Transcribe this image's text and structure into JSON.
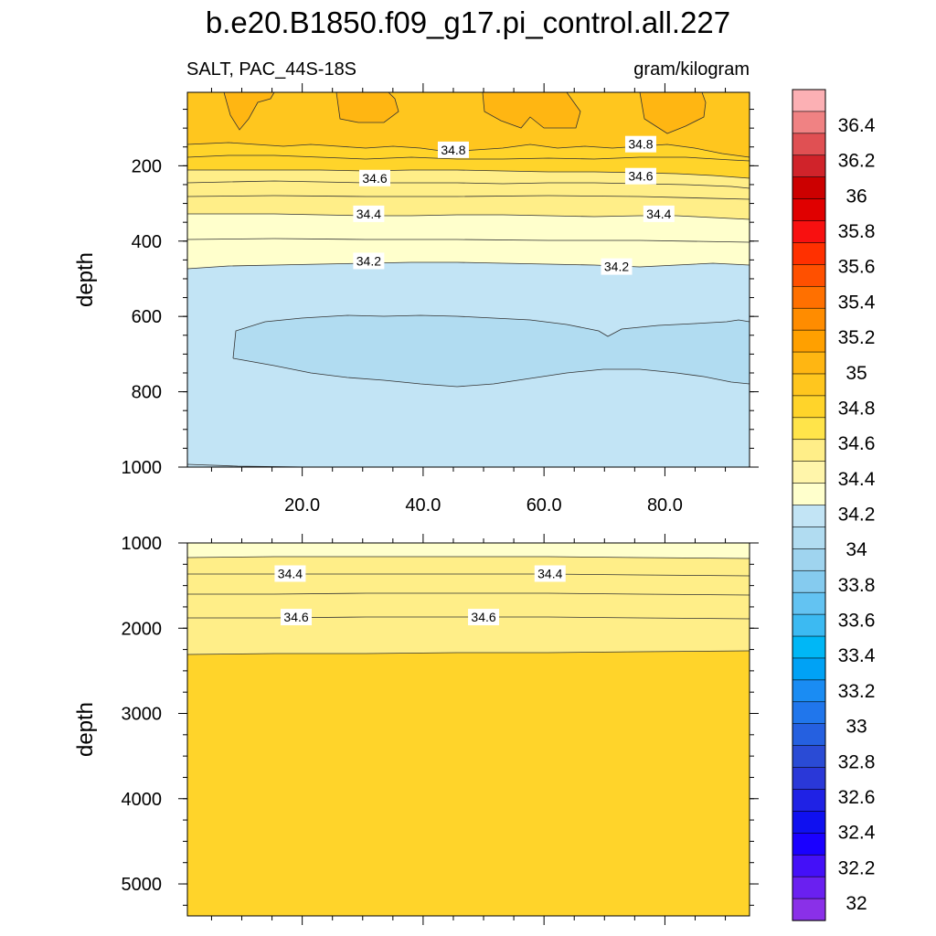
{
  "title": "b.e20.B1850.f09_g17.pi_control.all.227",
  "subtitle_left": "SALT, PAC_44S-18S",
  "subtitle_right": "gram/kilogram",
  "colors": {
    "c34_0": "#b1dcf1",
    "c34_2": "#c2e4f5",
    "c34_4": "#ffffcc",
    "c34_6": "#ffee88",
    "c34_8": "#ffd42a",
    "c35_0": "#ffb612"
  },
  "chart_data": [
    {
      "type": "contour",
      "xlabel": "",
      "ylabel": "depth",
      "xlim": [
        1,
        94
      ],
      "ylim": [
        1000,
        5
      ],
      "x_ticks": [
        "20.0",
        "40.0",
        "60.0",
        "80.0"
      ],
      "x_tick_values": [
        20,
        40,
        60,
        80
      ],
      "y_ticks": [
        "200",
        "400",
        "600",
        "800",
        "1000"
      ],
      "y_tick_values": [
        200,
        400,
        600,
        800,
        1000
      ],
      "contour_labels": [
        {
          "text": "34.8",
          "x": 45,
          "y": 160
        },
        {
          "text": "34.8",
          "x": 76,
          "y": 145
        },
        {
          "text": "34.6",
          "x": 32,
          "y": 235
        },
        {
          "text": "34.6",
          "x": 76,
          "y": 230
        },
        {
          "text": "34.4",
          "x": 31,
          "y": 330
        },
        {
          "text": "34.4",
          "x": 79,
          "y": 330
        },
        {
          "text": "34.2",
          "x": 31,
          "y": 455
        },
        {
          "text": "34.2",
          "x": 72,
          "y": 470
        }
      ]
    },
    {
      "type": "contour",
      "xlabel": "",
      "ylabel": "depth",
      "xlim": [
        1,
        94
      ],
      "ylim": [
        5375,
        1000
      ],
      "y_ticks": [
        "1000",
        "2000",
        "3000",
        "4000",
        "5000"
      ],
      "y_tick_values": [
        1000,
        2000,
        3000,
        4000,
        5000
      ],
      "contour_labels": [
        {
          "text": "34.4",
          "x": 18,
          "y": 1370
        },
        {
          "text": "34.4",
          "x": 61,
          "y": 1370
        },
        {
          "text": "34.6",
          "x": 19,
          "y": 1880
        },
        {
          "text": "34.6",
          "x": 50,
          "y": 1880
        }
      ]
    }
  ],
  "colorbar": {
    "labels": [
      "36.4",
      "36.2",
      "36",
      "35.8",
      "35.6",
      "35.4",
      "35.2",
      "35",
      "34.8",
      "34.6",
      "34.4",
      "34.2",
      "34",
      "33.8",
      "33.6",
      "33.4",
      "33.2",
      "33",
      "32.8",
      "32.6",
      "32.4",
      "32.2",
      "32"
    ],
    "colors": [
      "#fcb0b4",
      "#f08283",
      "#e05053",
      "#d0232a",
      "#cc0000",
      "#e00000",
      "#f81010",
      "#ff3000",
      "#ff5000",
      "#ff7000",
      "#ff8c00",
      "#ffa000",
      "#ffb612",
      "#ffc61e",
      "#ffd42a",
      "#ffe44a",
      "#ffee88",
      "#fff5aa",
      "#ffffcc",
      "#c2e4f5",
      "#b1dcf1",
      "#9fd4ef",
      "#85cbef",
      "#63c3f2",
      "#3cbaf2",
      "#00b7f6",
      "#00a2f5",
      "#1a8cf3",
      "#2076ec",
      "#2560e0",
      "#2a4bd5",
      "#2a38d8",
      "#1f22e5",
      "#0f10f0",
      "#1a00ff",
      "#4410f8",
      "#6a20f0",
      "#8a30e8"
    ]
  }
}
